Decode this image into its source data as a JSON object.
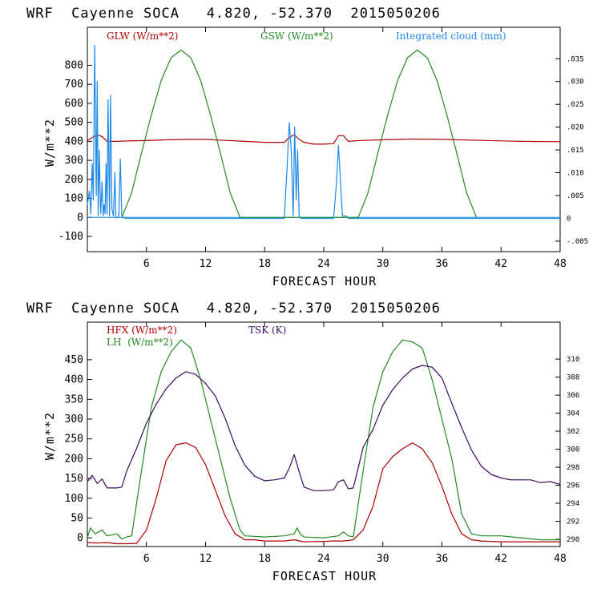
{
  "chart_data": [
    {
      "type": "line",
      "title": "WRF  Cayenne SOCA   4.820, -52.370  2015050206",
      "xlabel": "FORECAST HOUR",
      "ylabel": "W/m**2",
      "xlim": [
        0,
        48
      ],
      "xticks": [
        6,
        12,
        18,
        24,
        30,
        36,
        42,
        48
      ],
      "ylim": [
        -180,
        1000
      ],
      "yticks": [
        -100,
        0,
        100,
        200,
        300,
        400,
        500,
        600,
        700,
        800
      ],
      "right_ylim": [
        -0.0073,
        0.0419
      ],
      "right_yticks": [
        -0.005,
        0,
        0.005,
        0.01,
        0.015,
        0.02,
        0.025,
        0.03,
        0.035
      ],
      "right_ytick_labels": [
        "-.005",
        "0",
        ".005",
        ".010",
        ".015",
        ".020",
        ".025",
        ".030",
        ".035"
      ],
      "legend": [
        {
          "label": "GLW (W/m**2)",
          "color": "#b00000"
        },
        {
          "label": "GSW (W/m**2)",
          "color": "#228b22"
        },
        {
          "label": "Integrated cloud (mm)",
          "color": "#1e88e5"
        }
      ],
      "series": [
        {
          "name": "GLW (W/m**2)",
          "color": "#b00000",
          "axis": "left",
          "x": [
            0,
            0.5,
            1.0,
            1.5,
            2.0,
            3,
            4,
            6,
            8,
            10,
            12,
            14,
            16,
            18,
            20,
            20.5,
            21,
            21.5,
            22,
            23,
            24,
            25,
            25.5,
            26,
            26.5,
            27,
            28,
            30,
            33,
            36,
            40,
            44,
            48
          ],
          "values": [
            405,
            420,
            435,
            425,
            400,
            400,
            402,
            404,
            408,
            410,
            410,
            405,
            400,
            395,
            395,
            420,
            435,
            410,
            395,
            385,
            385,
            388,
            430,
            430,
            400,
            402,
            405,
            408,
            412,
            410,
            405,
            400,
            398
          ]
        },
        {
          "name": "GSW (W/m**2)",
          "color": "#228b22",
          "axis": "left",
          "x": [
            3.5,
            4.5,
            5.5,
            6.5,
            7.5,
            8.5,
            9.5,
            10.5,
            11.5,
            12.5,
            13.5,
            14.5,
            15.5,
            27.5,
            28.5,
            29.5,
            30.5,
            31.5,
            32.5,
            33.5,
            34.5,
            35.5,
            36.5,
            37.5,
            38.5,
            39.5
          ],
          "values": [
            0,
            130,
            340,
            540,
            720,
            840,
            880,
            840,
            720,
            540,
            340,
            130,
            0,
            0,
            130,
            340,
            540,
            720,
            840,
            880,
            840,
            720,
            540,
            340,
            130,
            0
          ]
        },
        {
          "name": "Integrated cloud (mm)",
          "color": "#1e88e5",
          "axis": "right",
          "x": [
            0,
            0.2,
            0.35,
            0.5,
            0.6,
            0.75,
            0.9,
            1.0,
            1.1,
            1.2,
            1.35,
            1.5,
            1.6,
            1.7,
            1.8,
            1.9,
            2.0,
            2.1,
            2.25,
            2.35,
            2.5,
            2.65,
            2.8,
            2.9,
            3.0,
            3.1,
            3.2,
            3.35,
            3.5,
            4.0,
            20.0,
            20.3,
            20.5,
            20.7,
            20.9,
            21.05,
            21.2,
            21.35,
            21.5,
            21.7,
            22.0,
            24.0,
            25.0,
            25.3,
            25.5,
            25.7,
            25.9,
            26.1,
            26.3,
            26.5,
            48
          ],
          "values": [
            0.003,
            0.006,
            0.001,
            0.012,
            0.004,
            0.038,
            0.005,
            0.03,
            0.0005,
            0.015,
            0.001,
            0.008,
            0.0005,
            0.003,
            0.001,
            0.012,
            0.001,
            0.026,
            0.0005,
            0.027,
            0.002,
            0.0005,
            0.01,
            0.0002,
            0.0001,
            0.0003,
            0.0005,
            0.013,
            0.0002,
            0,
            0,
            0.012,
            0.021,
            0.015,
            0.0005,
            0.02,
            0.004,
            0.015,
            0.0005,
            0,
            0,
            0,
            0,
            0.008,
            0.016,
            0.008,
            0.0005,
            0.0005,
            0.0005,
            0,
            0
          ]
        }
      ]
    },
    {
      "type": "line",
      "title": "WRF  Cayenne SOCA   4.820, -52.370  2015050206",
      "xlabel": "FORECAST HOUR",
      "ylabel": "W/m**2",
      "xlim": [
        0,
        48
      ],
      "xticks": [
        6,
        12,
        18,
        24,
        30,
        36,
        42,
        48
      ],
      "ylim": [
        -22,
        545
      ],
      "yticks": [
        0,
        50,
        100,
        150,
        200,
        250,
        300,
        350,
        400,
        450
      ],
      "right_ylim": [
        289.2,
        314.1
      ],
      "right_yticks": [
        290,
        292,
        294,
        296,
        298,
        300,
        302,
        304,
        306,
        308,
        310
      ],
      "right_ytick_labels": [
        "290",
        "292",
        "294",
        "296",
        "298",
        "300",
        "302",
        "304",
        "306",
        "308",
        "310"
      ],
      "legend": [
        {
          "label": "HFX (W/m**2)",
          "color": "#b00000"
        },
        {
          "label": "LH  (W/m**2)",
          "color": "#228b22"
        },
        {
          "label": "TSK (K)",
          "color": "#3d0a5e"
        }
      ],
      "series": [
        {
          "name": "HFX (W/m**2)",
          "color": "#b00000",
          "axis": "left",
          "x": [
            0,
            1,
            2,
            3,
            4,
            5,
            6,
            7,
            8,
            9,
            10,
            11,
            12,
            13,
            14,
            15,
            16,
            17,
            18,
            20,
            21,
            22,
            24,
            25,
            26,
            27,
            28,
            29,
            30,
            31,
            32,
            33,
            34,
            35,
            36,
            37,
            38,
            39,
            40,
            42,
            44,
            46,
            48
          ],
          "values": [
            -12,
            -13,
            -12,
            -15,
            -15,
            -14,
            20,
            100,
            195,
            235,
            240,
            228,
            185,
            120,
            55,
            10,
            -5,
            -5,
            -8,
            -8,
            -5,
            -10,
            -9,
            -8,
            -8,
            -5,
            20,
            80,
            175,
            205,
            225,
            240,
            225,
            190,
            130,
            60,
            10,
            -5,
            -8,
            -10,
            -10,
            -10,
            -10
          ]
        },
        {
          "name": "LH  (W/m**2)",
          "color": "#228b22",
          "axis": "left",
          "x": [
            0,
            0.3,
            0.8,
            1.5,
            2,
            3,
            3.5,
            4,
            4.5,
            5.5,
            6.5,
            7.5,
            8.5,
            9.5,
            10.5,
            11.5,
            12.5,
            13.5,
            14.5,
            15.5,
            16,
            18,
            20,
            21,
            21.3,
            21.6,
            22,
            24,
            25.5,
            26,
            26.5,
            27,
            28,
            29,
            30,
            31,
            32,
            33,
            34,
            35,
            36,
            37,
            38,
            39,
            40,
            42,
            44,
            46,
            48
          ],
          "values": [
            0,
            25,
            10,
            20,
            5,
            10,
            -3,
            2,
            5,
            170,
            330,
            420,
            470,
            500,
            480,
            400,
            300,
            200,
            100,
            20,
            5,
            2,
            5,
            10,
            25,
            10,
            2,
            0,
            5,
            15,
            5,
            2,
            170,
            330,
            420,
            470,
            500,
            495,
            480,
            400,
            300,
            200,
            60,
            10,
            5,
            5,
            0,
            -5,
            -5
          ]
        },
        {
          "name": "TSK (K)",
          "color": "#3d0a5e",
          "axis": "right",
          "x": [
            0,
            0.5,
            1,
            1.5,
            2,
            3,
            3.5,
            4,
            5,
            6,
            7,
            8,
            9,
            10,
            11,
            12,
            13,
            14,
            15,
            16,
            17,
            18,
            19,
            20,
            20.5,
            21,
            21.5,
            22,
            23,
            24,
            25,
            25.5,
            26,
            26.5,
            27,
            28,
            29,
            30,
            31,
            32,
            33,
            34,
            35,
            36,
            37,
            38,
            39,
            40,
            41,
            42,
            43,
            44,
            45,
            46,
            47,
            48
          ],
          "values": [
            296.4,
            297.1,
            296.2,
            296.7,
            295.7,
            295.7,
            295.8,
            297.6,
            300.1,
            302.9,
            305.0,
            306.7,
            307.9,
            308.6,
            308.3,
            307.3,
            305.9,
            303.4,
            300.4,
            298.2,
            297.0,
            296.5,
            296.6,
            296.8,
            297.9,
            299.4,
            297.5,
            295.8,
            295.4,
            295.4,
            295.5,
            296.4,
            296.6,
            295.6,
            295.7,
            300.2,
            302.2,
            304.9,
            306.6,
            307.9,
            308.9,
            309.3,
            309.1,
            307.9,
            305.1,
            302.4,
            299.9,
            298.1,
            297.2,
            296.8,
            296.6,
            296.6,
            296.6,
            296.3,
            296.4,
            296.1
          ]
        }
      ]
    }
  ]
}
